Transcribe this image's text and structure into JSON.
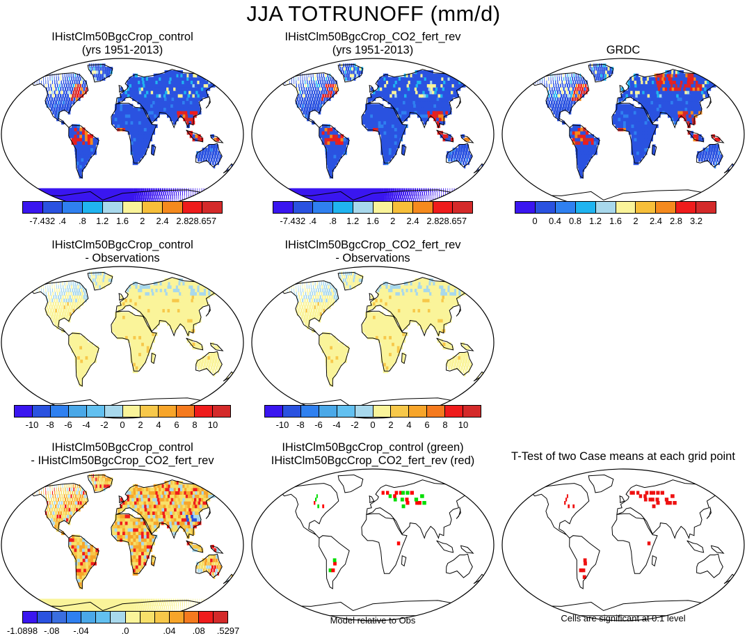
{
  "title": "JJA TOTRUNOFF (mm/d)",
  "panels": [
    {
      "id": "p1",
      "line1": "IHistClm50BgcCrop_control",
      "line2": "(yrs 1951-2013)",
      "fill": "runoff",
      "antarctica": true
    },
    {
      "id": "p2",
      "line1": "IHistClm50BgcCrop_CO2_fert_rev",
      "line2": "(yrs 1951-2013)",
      "fill": "runoff",
      "antarctica": true
    },
    {
      "id": "p3",
      "line1": "GRDC",
      "line2": "",
      "fill": "runoff-obs",
      "antarctica": false
    },
    {
      "id": "p4",
      "line1": "IHistClm50BgcCrop_control",
      "line2": "- Observations",
      "fill": "bias",
      "antarctica": false
    },
    {
      "id": "p5",
      "line1": "IHistClm50BgcCrop_CO2_fert_rev",
      "line2": "- Observations",
      "fill": "bias",
      "antarctica": false
    },
    {
      "id": "p7",
      "line1": "IHistClm50BgcCrop_control",
      "line2": "- IHistClm50BgcCrop_CO2_fert_rev",
      "fill": "diff",
      "antarctica": true
    },
    {
      "id": "p8",
      "line1": "IHistClm50BgcCrop_control (green)",
      "line2": "IHistClm50BgcCrop_CO2_fert_rev (red)",
      "fill": "sig-both",
      "antarctica": false
    },
    {
      "id": "p9",
      "line1": "T-Test of two Case means at each grid point",
      "line2": "",
      "fill": "sig-red",
      "antarctica": false
    }
  ],
  "colorbars": {
    "runoff_model": {
      "colors": [
        "#3a16f0",
        "#2a52e0",
        "#2f80f0",
        "#20b4f0",
        "#a8d8ec",
        "#faf49a",
        "#f7bf3a",
        "#f58a1e",
        "#ef1c1c",
        "#d42a2a"
      ],
      "labels": [
        "-7.432",
        ".4",
        ".8",
        "1.2",
        "1.6",
        "2",
        "2.4",
        "2.8",
        "28.657"
      ]
    },
    "runoff_obs": {
      "colors": [
        "#3a16f0",
        "#2a52e0",
        "#2f80f0",
        "#20b4f0",
        "#a8d8ec",
        "#faf49a",
        "#f7bf3a",
        "#f58a1e",
        "#ef1c1c",
        "#d42a2a"
      ],
      "labels": [
        "0",
        "0.4",
        "0.8",
        "1.2",
        "1.6",
        "2",
        "2.4",
        "2.8",
        "3.2"
      ]
    },
    "bias": {
      "colors": [
        "#3a16f0",
        "#2a52e0",
        "#2f80f0",
        "#4aa8e8",
        "#62c0f0",
        "#a8d8ec",
        "#faf49a",
        "#f7c84a",
        "#f7a52a",
        "#f57a1e",
        "#ef1c1c",
        "#d42a2a"
      ],
      "labels": [
        "-10",
        "-8",
        "-6",
        "-4",
        "-2",
        "0",
        "2",
        "4",
        "6",
        "8",
        "10"
      ]
    },
    "diff": {
      "colors": [
        "#3a16f0",
        "#2a52e0",
        "#3a6ee0",
        "#2f80f0",
        "#4aa8e8",
        "#62c0f0",
        "#a8d8ec",
        "#faf49a",
        "#f7e06a",
        "#f7c84a",
        "#f7a52a",
        "#f57a1e",
        "#ef1c1c",
        "#d42a2a"
      ],
      "labels": [
        "-1.0898",
        "-.08",
        "-.04",
        ".0",
        ".04",
        ".08",
        ".5297"
      ]
    }
  },
  "notes": {
    "model_relative": "Model relative to Obs",
    "cells_significant": "Cells are significant at 0.1 level"
  }
}
